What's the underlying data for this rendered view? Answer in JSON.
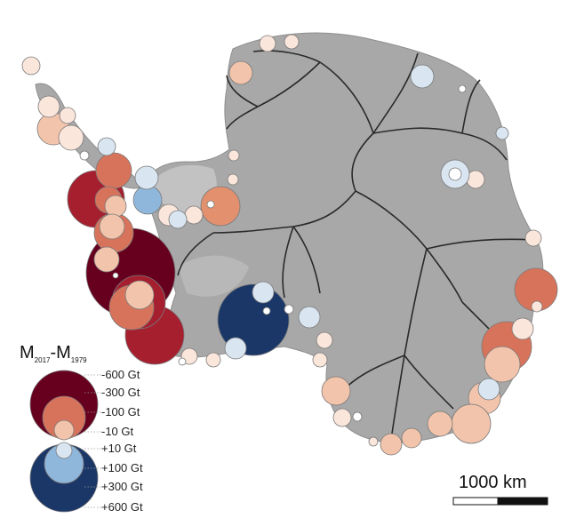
{
  "colors": {
    "ice": "#a8a8a8",
    "ice_stroke": "#8e8e8e",
    "shelf": "#c2c2c2",
    "divide": "#2a2a2a",
    "loss_600": "#67001f",
    "loss_300": "#a51f2f",
    "loss_100": "#d8735b",
    "loss_10": "#f2c4ab",
    "loss_small": "#fbe6dc",
    "gain_10": "#d9e6f2",
    "gain_100": "#8fb7dc",
    "gain_300": "#1a3768",
    "bubble_stroke": "#7a7a7a"
  },
  "legend": {
    "title": "M",
    "title_sub1": "2017",
    "sep": "-M",
    "title_sub2": "1979",
    "labels": [
      "-600 Gt",
      "-300 Gt",
      "-100 Gt",
      "-10 Gt",
      "+10 Gt",
      "+100 Gt",
      "+300 Gt",
      "+600 Gt"
    ]
  },
  "scale_bar": {
    "label": "1000 km"
  }
}
